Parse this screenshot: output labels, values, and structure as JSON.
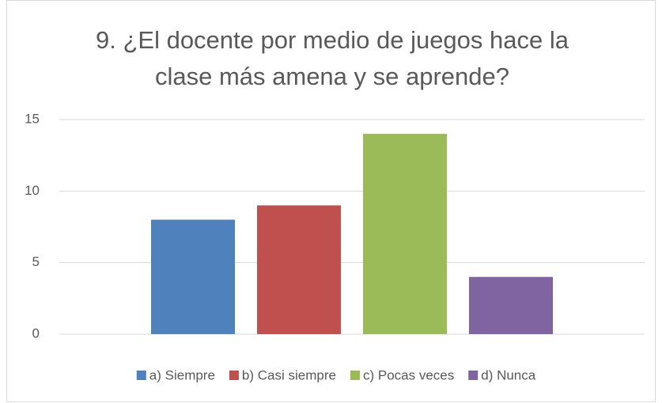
{
  "chart_data": {
    "type": "bar",
    "title": "9. ¿El docente por medio de juegos hace la clase más amena y se aprende?",
    "categories": [
      null
    ],
    "series": [
      {
        "name": "a) Siempre",
        "color": "#4f81bd",
        "values": [
          8
        ]
      },
      {
        "name": "b) Casi siempre",
        "color": "#c0504d",
        "values": [
          9
        ]
      },
      {
        "name": "c) Pocas veces",
        "color": "#9bbb59",
        "values": [
          14
        ]
      },
      {
        "name": "d) Nunca",
        "color": "#8064a2",
        "values": [
          4
        ]
      }
    ],
    "ylim": [
      0,
      15
    ],
    "yticks": [
      0,
      5,
      10,
      15
    ],
    "grid": true,
    "legend": "bottom"
  }
}
